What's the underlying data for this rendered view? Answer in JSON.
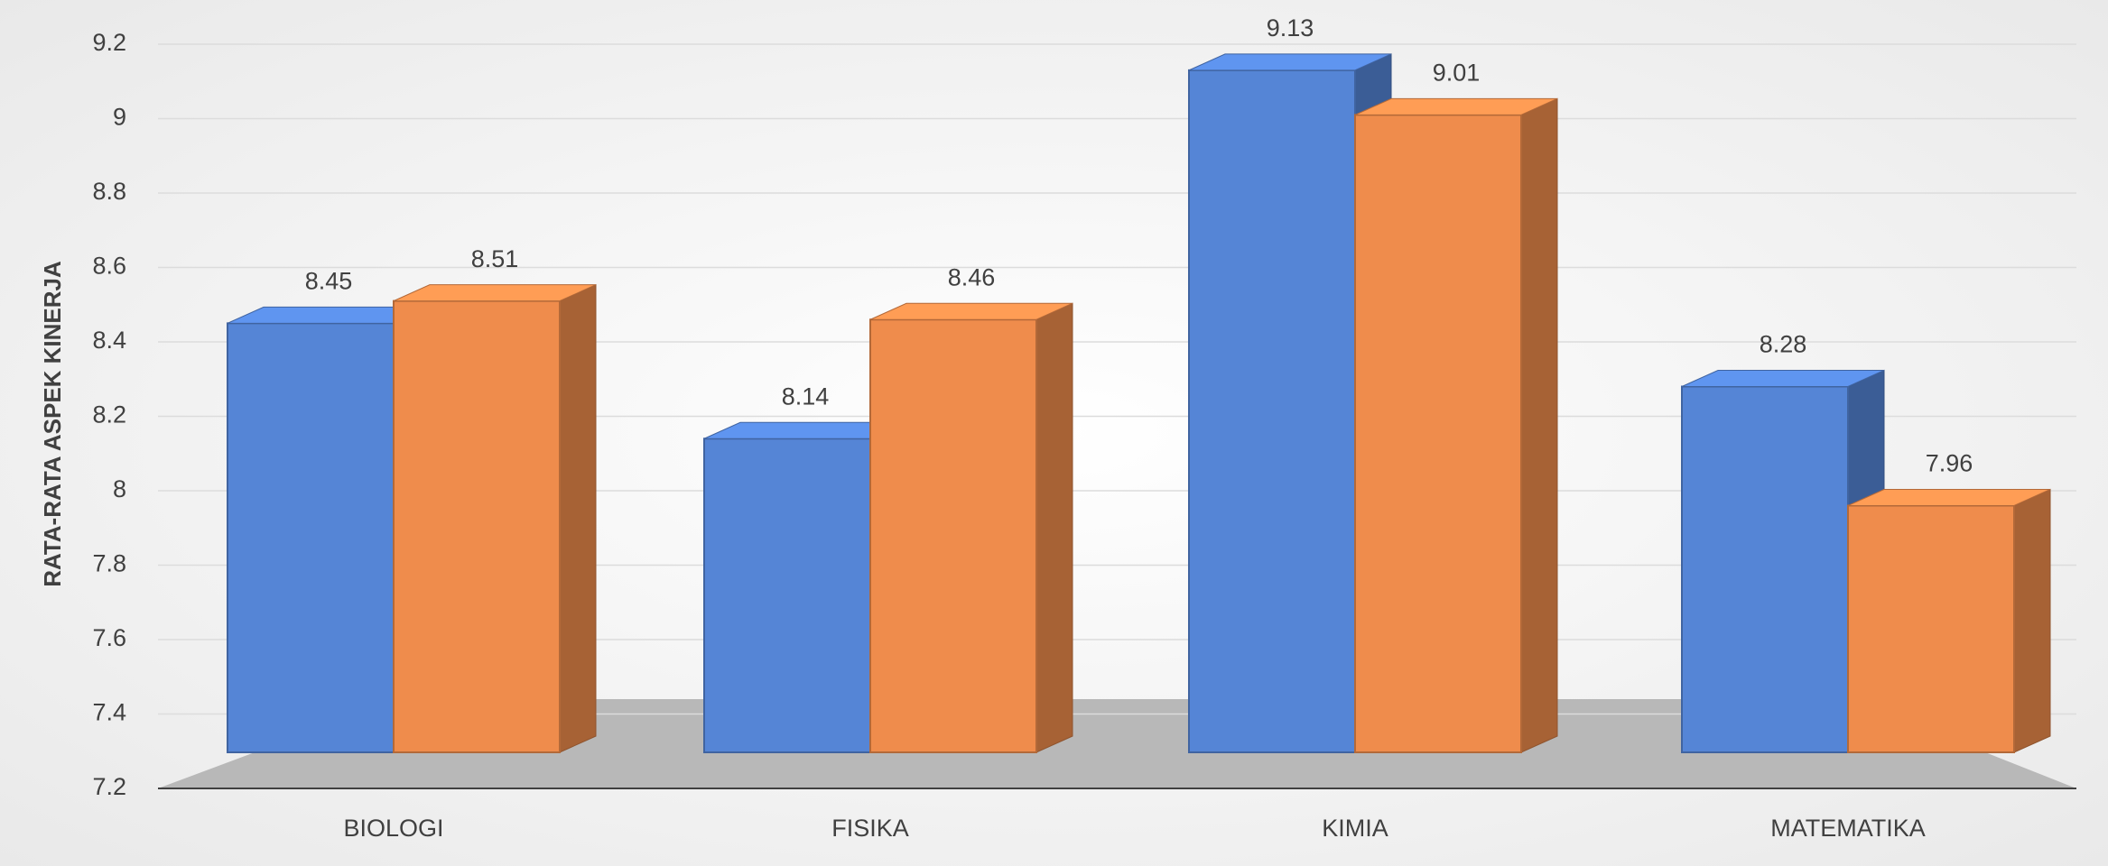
{
  "chart_data": {
    "type": "bar3d",
    "y_label": "RATA-RATA ASPEK KINERJA",
    "categories": [
      "BIOLOGI",
      "FISIKA",
      "KIMIA",
      "MATEMATIKA"
    ],
    "series": [
      {
        "color": "#5585d6",
        "values": [
          8.45,
          8.14,
          9.13,
          8.28
        ]
      },
      {
        "color": "#ef8c4c",
        "values": [
          8.51,
          8.46,
          9.01,
          7.96
        ]
      }
    ],
    "ylim": [
      7.2,
      9.2
    ],
    "yticks": [
      7.2,
      7.4,
      7.6,
      7.8,
      8,
      8.2,
      8.4,
      8.6,
      8.8,
      9,
      9.2
    ],
    "grid": true
  }
}
